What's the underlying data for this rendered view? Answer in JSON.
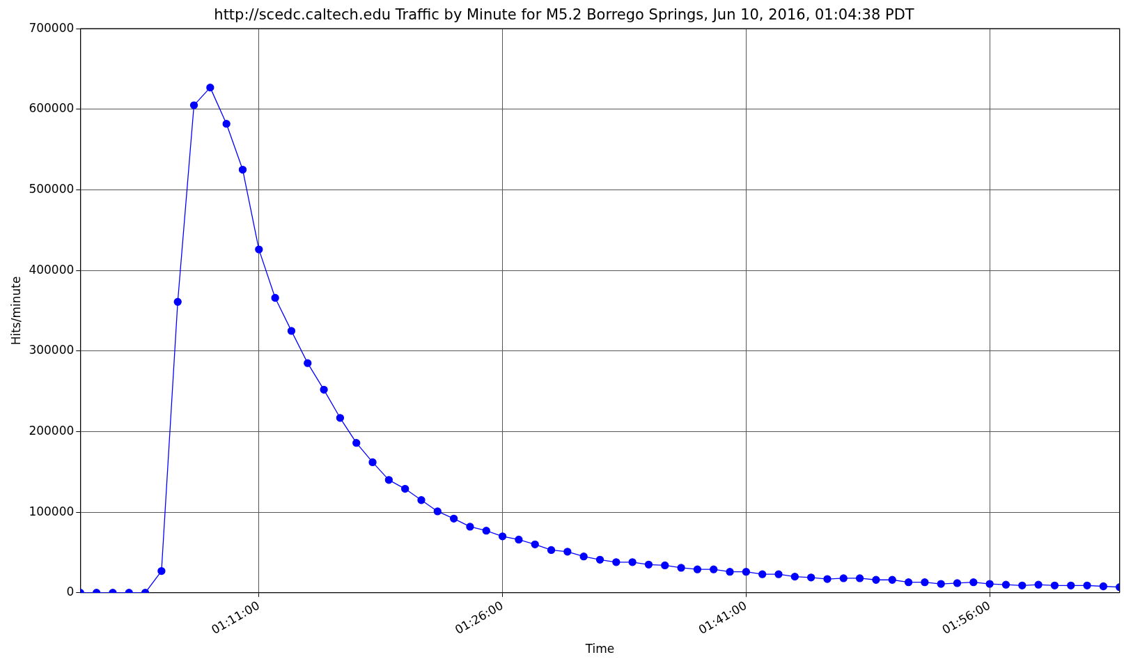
{
  "chart_data": {
    "type": "line",
    "title": "http://scedc.caltech.edu Traffic by Minute for M5.2 Borrego Springs, Jun 10, 2016, 01:04:38 PDT",
    "xlabel": "Time",
    "ylabel": "Hits/minute",
    "x": [
      "2016-06-10T01:00",
      "2016-06-10T01:01",
      "2016-06-10T01:02",
      "2016-06-10T01:03",
      "2016-06-10T01:04",
      "2016-06-10T01:05",
      "2016-06-10T01:06",
      "2016-06-10T01:07",
      "2016-06-10T01:08",
      "2016-06-10T01:09",
      "2016-06-10T01:10",
      "2016-06-10T01:11",
      "2016-06-10T01:12",
      "2016-06-10T01:13",
      "2016-06-10T01:14",
      "2016-06-10T01:15",
      "2016-06-10T01:16",
      "2016-06-10T01:17",
      "2016-06-10T01:18",
      "2016-06-10T01:19",
      "2016-06-10T01:20",
      "2016-06-10T01:21",
      "2016-06-10T01:22",
      "2016-06-10T01:23",
      "2016-06-10T01:24",
      "2016-06-10T01:25",
      "2016-06-10T01:26",
      "2016-06-10T01:27",
      "2016-06-10T01:28",
      "2016-06-10T01:29",
      "2016-06-10T01:30",
      "2016-06-10T01:31",
      "2016-06-10T01:32",
      "2016-06-10T01:33",
      "2016-06-10T01:34",
      "2016-06-10T01:35",
      "2016-06-10T01:36",
      "2016-06-10T01:37",
      "2016-06-10T01:38",
      "2016-06-10T01:39",
      "2016-06-10T01:40",
      "2016-06-10T01:41",
      "2016-06-10T01:42",
      "2016-06-10T01:43",
      "2016-06-10T01:44",
      "2016-06-10T01:45",
      "2016-06-10T01:46",
      "2016-06-10T01:47",
      "2016-06-10T01:48",
      "2016-06-10T01:49",
      "2016-06-10T01:50",
      "2016-06-10T01:51",
      "2016-06-10T01:52",
      "2016-06-10T01:53",
      "2016-06-10T01:54",
      "2016-06-10T01:55",
      "2016-06-10T01:56",
      "2016-06-10T01:57",
      "2016-06-10T01:58",
      "2016-06-10T01:59",
      "2016-06-10T02:00",
      "2016-06-10T02:01",
      "2016-06-10T02:02",
      "2016-06-10T02:03",
      "2016-06-10T02:04"
    ],
    "series": [
      {
        "color": "#0000ff",
        "values": [
          0,
          0,
          0,
          0,
          0,
          27000,
          361000,
          605000,
          627000,
          582000,
          525000,
          426000,
          366000,
          325000,
          285000,
          252000,
          217000,
          186000,
          162000,
          140000,
          129000,
          115000,
          101000,
          92000,
          82000,
          77000,
          70000,
          66000,
          60000,
          53000,
          51000,
          45000,
          41000,
          38000,
          38000,
          35000,
          34000,
          31000,
          29000,
          29000,
          26000,
          26000,
          23000,
          23000,
          20000,
          19000,
          17000,
          18000,
          18000,
          16000,
          16000,
          13000,
          13000,
          11000,
          12000,
          13000,
          11000,
          10000,
          9000,
          10000,
          9000,
          9000,
          9000,
          8000,
          7000
        ]
      }
    ],
    "xlim": [
      "2016-06-10T01:00",
      "2016-06-10T02:04"
    ],
    "xticks": [
      {
        "value": "2016-06-10T01:11",
        "label": "01:11:00"
      },
      {
        "value": "2016-06-10T01:26",
        "label": "01:26:00"
      },
      {
        "value": "2016-06-10T01:41",
        "label": "01:41:00"
      },
      {
        "value": "2016-06-10T01:56",
        "label": "01:56:00"
      }
    ],
    "ylim": [
      0,
      700000
    ],
    "yticks": [
      0,
      100000,
      200000,
      300000,
      400000,
      500000,
      600000,
      700000
    ],
    "grid": true,
    "legend": false,
    "marker": "circle",
    "line_style": "solid"
  }
}
